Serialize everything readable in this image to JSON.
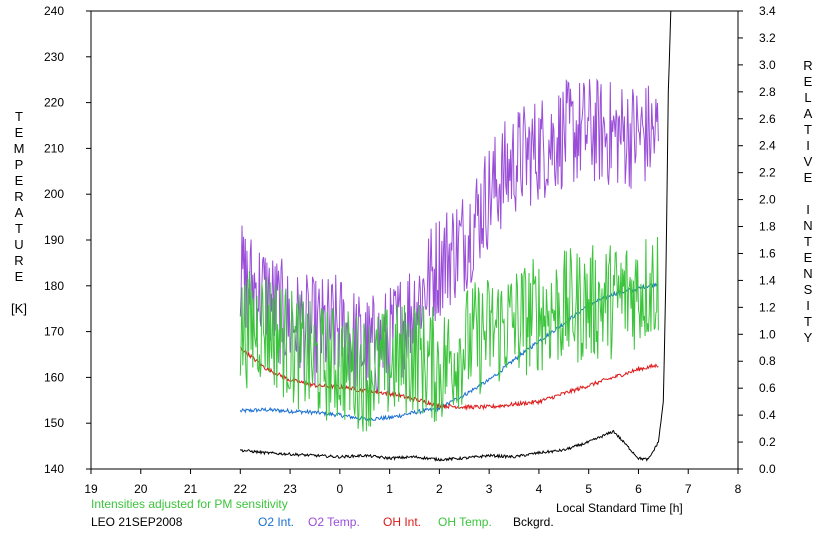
{
  "chart_data": {
    "type": "line",
    "x_ticks": [
      "19",
      "20",
      "21",
      "22",
      "23",
      "0",
      "1",
      "2",
      "3",
      "4",
      "5",
      "6",
      "7",
      "8"
    ],
    "y_left_ticks": [
      "140",
      "150",
      "160",
      "170",
      "180",
      "190",
      "200",
      "210",
      "220",
      "230",
      "240"
    ],
    "y_right_ticks": [
      "0.0",
      "0.2",
      "0.4",
      "0.6",
      "0.8",
      "1.0",
      "1.2",
      "1.4",
      "1.6",
      "1.8",
      "2.0",
      "2.2",
      "2.4",
      "2.6",
      "2.8",
      "3.0",
      "3.2",
      "3.4"
    ],
    "x_range": [
      19,
      32
    ],
    "y_left_range": [
      140,
      240
    ],
    "y_right_range": [
      0,
      3.4
    ],
    "left_label_letters": [
      "T",
      "E",
      "M",
      "P",
      "E",
      "R",
      "A",
      "T",
      "U",
      "R",
      "E",
      "",
      "[K]"
    ],
    "right_label_letters": [
      "R",
      "E",
      "L",
      "A",
      "T",
      "I",
      "V",
      "E",
      "",
      "I",
      "N",
      "T",
      "E",
      "N",
      "S",
      "I",
      "T",
      "Y"
    ],
    "xlabel": "Local Standard Time [h]",
    "note": "Intensities adjusted for PM sensitivity",
    "station": "LEO 21SEP2008",
    "legend_position": "bottom",
    "series": [
      {
        "name": "O2 Int.",
        "color": "#1a6fd0",
        "axis": "right",
        "x": [
          22.0,
          22.5,
          23.0,
          23.5,
          24.0,
          24.5,
          25.0,
          25.5,
          26.0,
          26.5,
          27.0,
          27.5,
          28.0,
          28.5,
          29.0,
          29.5,
          30.0,
          30.4
        ],
        "y": [
          0.43,
          0.44,
          0.43,
          0.42,
          0.4,
          0.37,
          0.38,
          0.42,
          0.45,
          0.55,
          0.66,
          0.81,
          0.95,
          1.08,
          1.22,
          1.3,
          1.34,
          1.38
        ]
      },
      {
        "name": "O2 Temp.",
        "color": "#9a4ed8",
        "axis": "left",
        "x": [
          22.0,
          22.5,
          23.0,
          23.5,
          24.0,
          24.5,
          25.0,
          25.5,
          26.0,
          26.5,
          27.0,
          27.5,
          28.0,
          28.5,
          29.0,
          29.5,
          30.0,
          30.4
        ],
        "y": [
          182,
          178,
          172,
          170,
          171,
          166,
          168,
          176,
          185,
          190,
          200,
          207,
          210,
          213,
          214,
          213,
          213,
          213
        ]
      },
      {
        "name": "OH Int.",
        "color": "#dd1a1a",
        "axis": "right",
        "x": [
          22.0,
          22.5,
          23.0,
          23.5,
          24.0,
          24.5,
          25.0,
          25.5,
          26.0,
          26.5,
          27.0,
          27.5,
          28.0,
          28.5,
          29.0,
          29.5,
          30.0,
          30.4
        ],
        "y": [
          0.9,
          0.75,
          0.66,
          0.62,
          0.61,
          0.58,
          0.56,
          0.52,
          0.47,
          0.46,
          0.46,
          0.48,
          0.5,
          0.56,
          0.62,
          0.68,
          0.74,
          0.77
        ]
      },
      {
        "name": "OH Temp.",
        "color": "#3cc43c",
        "axis": "left",
        "x": [
          22.0,
          22.5,
          23.0,
          23.5,
          24.0,
          24.5,
          25.0,
          25.5,
          26.0,
          26.5,
          27.0,
          27.5,
          28.0,
          28.5,
          29.0,
          29.5,
          30.0,
          30.4
        ],
        "y": [
          170,
          172,
          167,
          163,
          163,
          161,
          163,
          165,
          162,
          167,
          170,
          172,
          174,
          175,
          176,
          177,
          179,
          181
        ]
      },
      {
        "name": "Bckgrd.",
        "color": "#000000",
        "axis": "right",
        "x": [
          22.0,
          22.5,
          23.0,
          23.5,
          24.0,
          24.5,
          25.0,
          25.5,
          26.0,
          26.5,
          27.0,
          27.5,
          28.0,
          28.5,
          29.0,
          29.5,
          30.0,
          30.2,
          30.4,
          30.5,
          30.55,
          30.6,
          30.65
        ],
        "y": [
          0.14,
          0.12,
          0.11,
          0.1,
          0.09,
          0.1,
          0.08,
          0.09,
          0.07,
          0.08,
          0.1,
          0.09,
          0.12,
          0.14,
          0.2,
          0.28,
          0.08,
          0.07,
          0.2,
          0.5,
          1.4,
          2.8,
          3.4
        ]
      }
    ]
  }
}
